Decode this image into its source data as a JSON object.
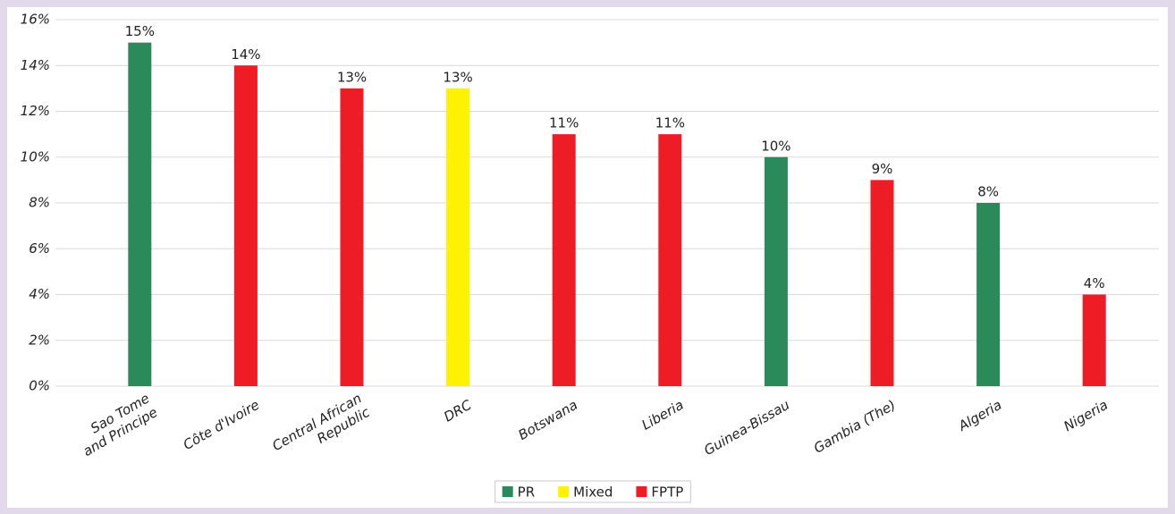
{
  "chart_data": {
    "type": "bar",
    "categories": [
      "Sao Tome and Principe",
      "Côte d'Ivoire",
      "Central African Republic",
      "DRC",
      "Botswana",
      "Liberia",
      "Guinea-Bissau",
      "Gambia (The)",
      "Algeria",
      "Nigeria"
    ],
    "series": [
      {
        "name": "PR",
        "color": "#2b8a5a",
        "values": [
          15,
          null,
          null,
          null,
          null,
          null,
          10,
          null,
          8,
          null
        ],
        "value_labels": [
          "15%",
          null,
          null,
          null,
          null,
          null,
          "10%",
          null,
          "8%",
          null
        ]
      },
      {
        "name": "Mixed",
        "color": "#fff200",
        "values": [
          null,
          null,
          null,
          13,
          null,
          null,
          null,
          null,
          null,
          null
        ],
        "value_labels": [
          null,
          null,
          null,
          "13%",
          null,
          null,
          null,
          null,
          null,
          null
        ]
      },
      {
        "name": "FPTP",
        "color": "#ee1c25",
        "values": [
          null,
          14,
          13,
          null,
          11,
          11,
          null,
          9,
          null,
          4
        ],
        "value_labels": [
          null,
          "14%",
          "13%",
          null,
          "11%",
          "11%",
          null,
          "9%",
          null,
          "4%"
        ]
      }
    ],
    "ylim": [
      0,
      16
    ],
    "yticks": [
      {
        "value": 0,
        "label": "0%"
      },
      {
        "value": 2,
        "label": "2%"
      },
      {
        "value": 4,
        "label": "4%"
      },
      {
        "value": 6,
        "label": "6%"
      },
      {
        "value": 8,
        "label": "8%"
      },
      {
        "value": 10,
        "label": "10%"
      },
      {
        "value": 12,
        "label": "12%"
      },
      {
        "value": 14,
        "label": "14%"
      },
      {
        "value": 16,
        "label": "16%"
      }
    ],
    "grid": true,
    "legend": "bottom"
  }
}
